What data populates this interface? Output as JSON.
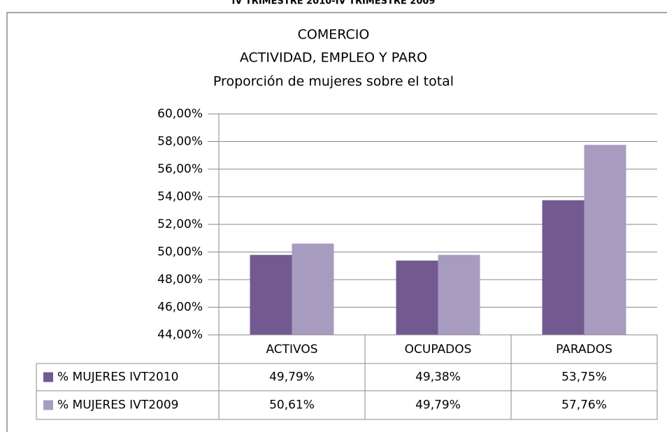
{
  "chart_data": {
    "type": "bar",
    "header": "IV TRIMESTRE 2010-IV TRIMESTRE 2009",
    "title": [
      "COMERCIO",
      "ACTIVIDAD, EMPLEO Y PARO",
      "Proporción de mujeres sobre el total"
    ],
    "categories": [
      "ACTIVOS",
      "OCUPADOS",
      "PARADOS"
    ],
    "series": [
      {
        "name": "% MUJERES IVT2010",
        "color": "#725a91",
        "values": [
          49.79,
          49.38,
          53.75
        ],
        "value_labels": [
          "49,79%",
          "49,38%",
          "53,75%"
        ]
      },
      {
        "name": "% MUJERES IVT2009",
        "color": "#a79cc0",
        "values": [
          50.61,
          49.79,
          57.76
        ],
        "value_labels": [
          "50,61%",
          "49,79%",
          "57,76%"
        ]
      }
    ],
    "ylim": [
      44,
      60
    ],
    "yticks": [
      {
        "value": 44,
        "label": "44,00%"
      },
      {
        "value": 46,
        "label": "46,00%"
      },
      {
        "value": 48,
        "label": "48,00%"
      },
      {
        "value": 50,
        "label": "50,00%"
      },
      {
        "value": 52,
        "label": "52,00%"
      },
      {
        "value": 54,
        "label": "54,00%"
      },
      {
        "value": 56,
        "label": "56,00%"
      },
      {
        "value": 58,
        "label": "58,00%"
      },
      {
        "value": 60,
        "label": "60,00%"
      }
    ],
    "grid": true
  }
}
